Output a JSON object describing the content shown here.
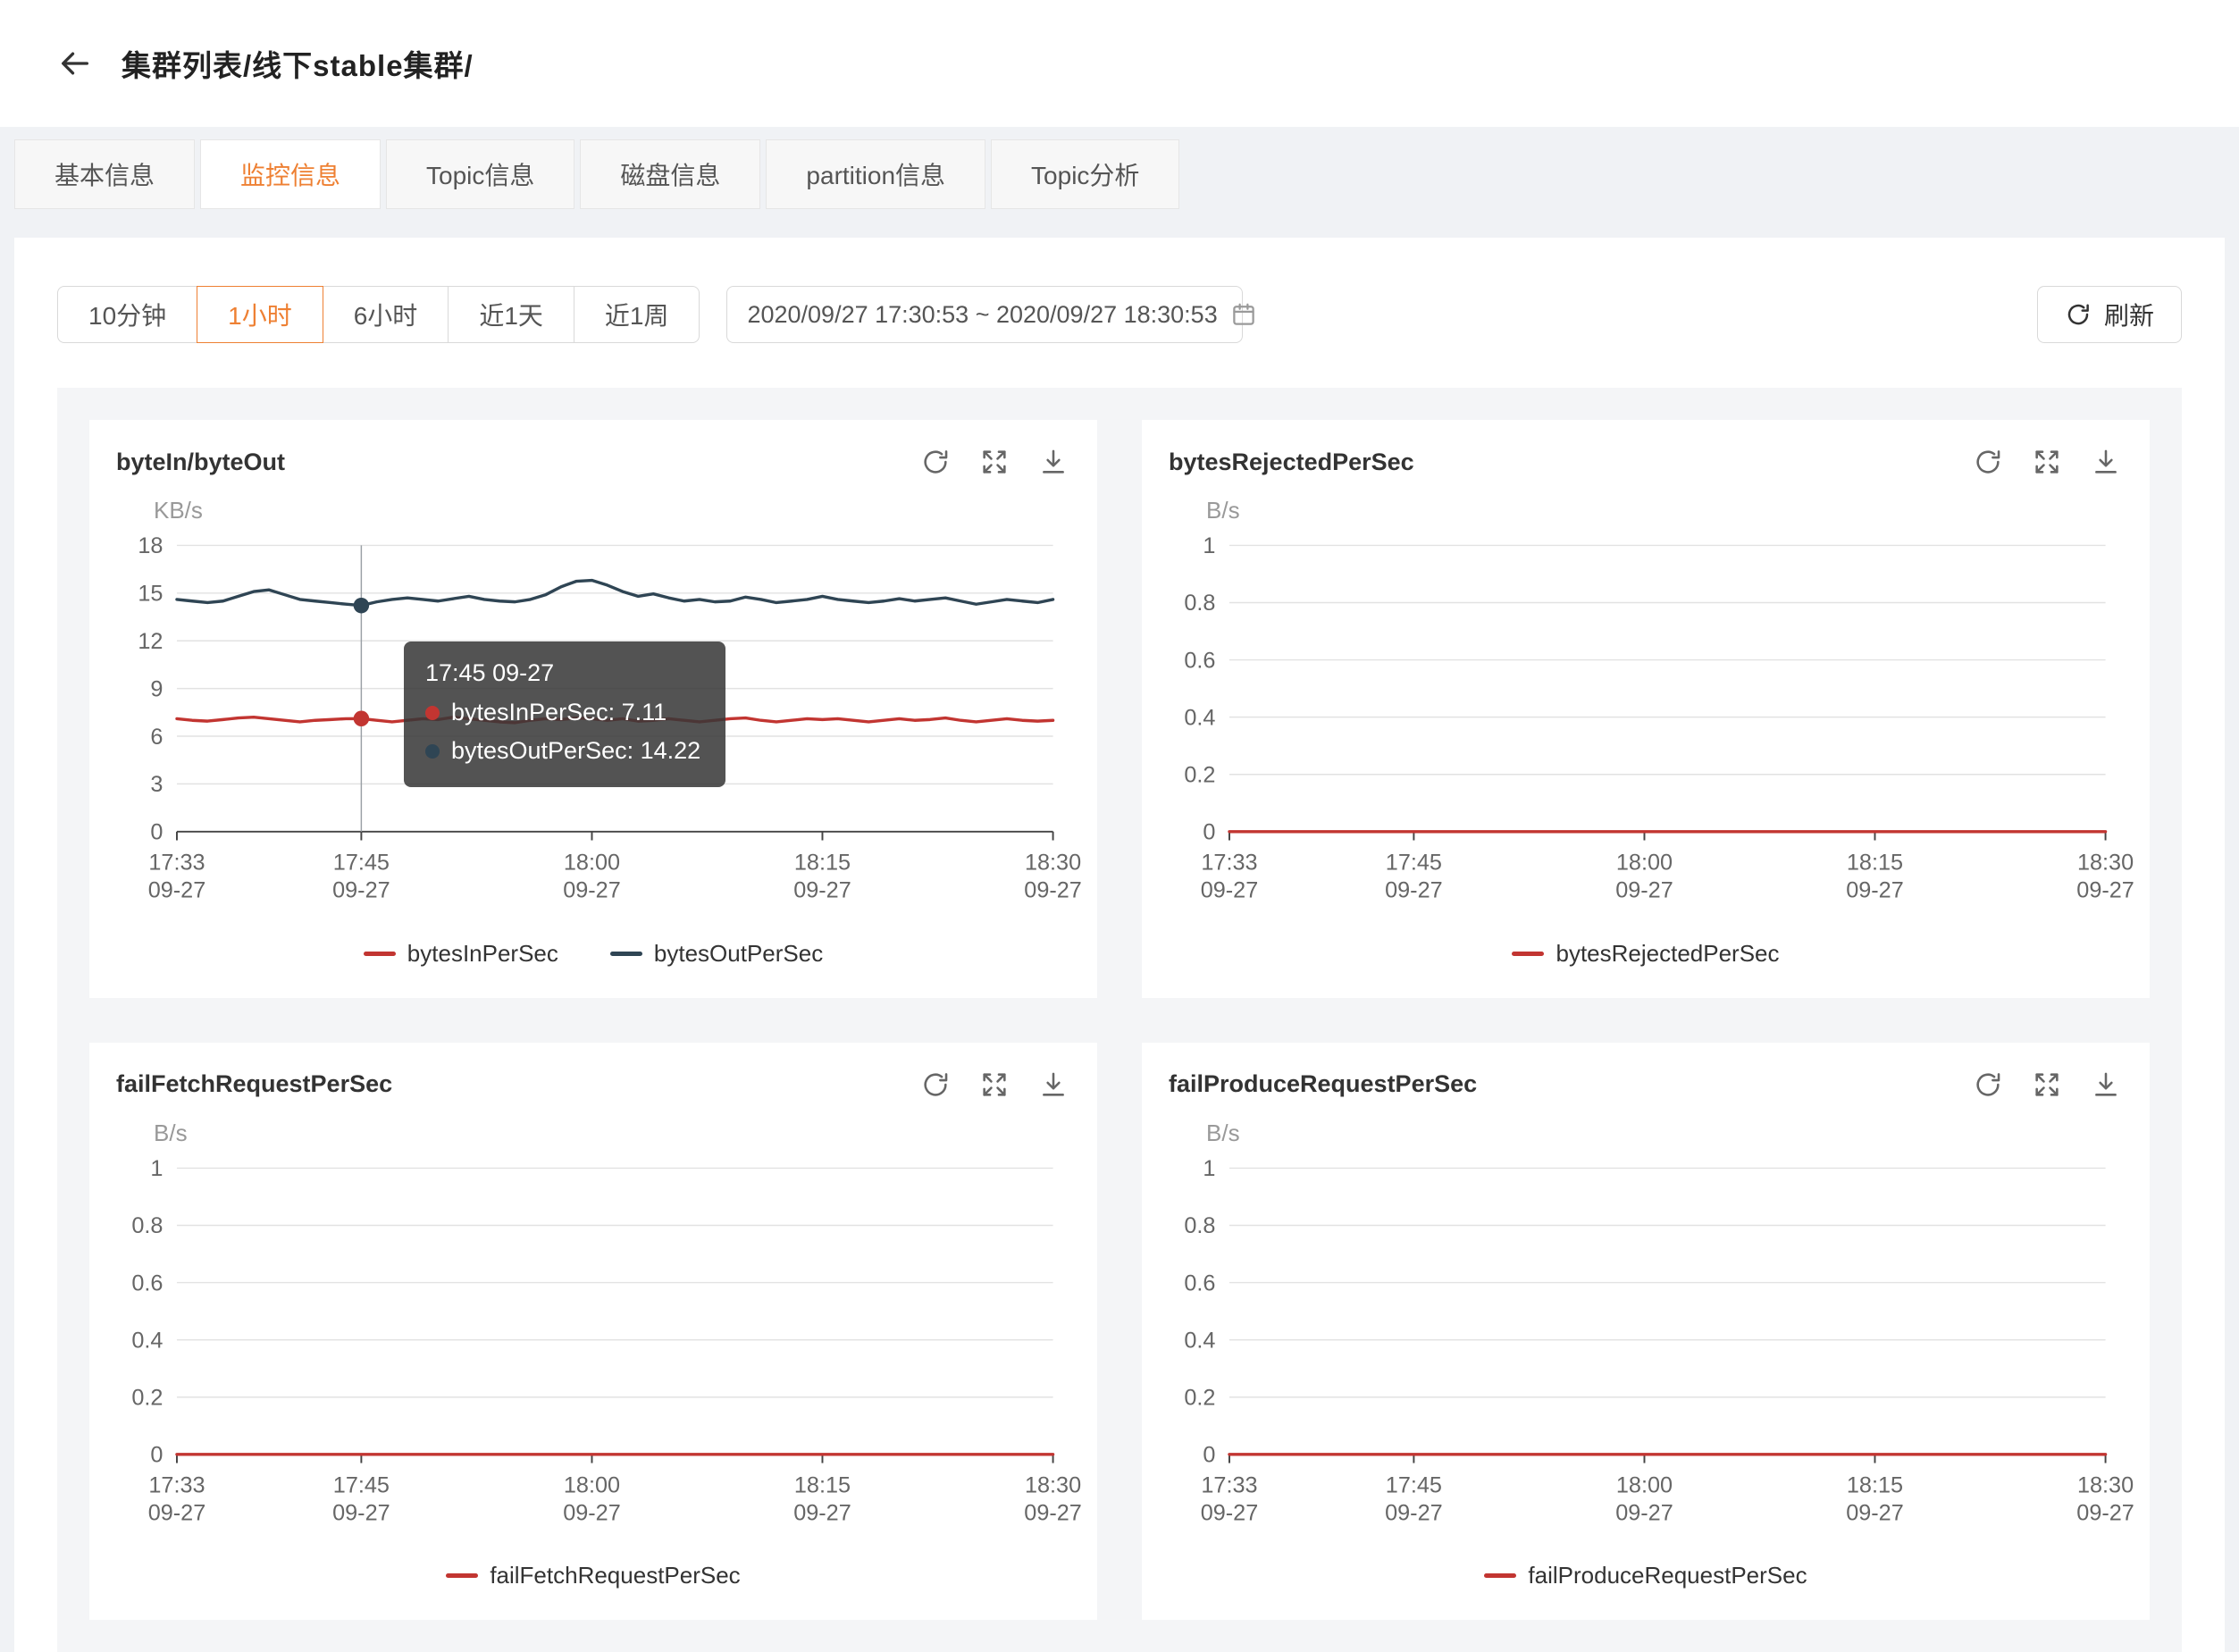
{
  "colors": {
    "accent": "#ee8033",
    "series_red": "#c23531",
    "series_dark": "#2f4554",
    "grid": "#e2e2e2",
    "axis": "#444444"
  },
  "icons": {
    "back": "arrow-left",
    "calendar": "calendar",
    "toolbar_refresh": "circular-arrow",
    "chart_refresh": "circular-arrow",
    "chart_expand": "arrows-out",
    "chart_download": "arrow-down-to-tray"
  },
  "header": {
    "breadcrumb": "集群列表/线下stable集群/"
  },
  "tabs": {
    "active_index": 1,
    "items": [
      {
        "label": "基本信息"
      },
      {
        "label": "监控信息"
      },
      {
        "label": "Topic信息"
      },
      {
        "label": "磁盘信息"
      },
      {
        "label": "partition信息"
      },
      {
        "label": "Topic分析"
      }
    ]
  },
  "toolbar": {
    "active_range_index": 1,
    "time_ranges": [
      {
        "label": "10分钟"
      },
      {
        "label": "1小时"
      },
      {
        "label": "6小时"
      },
      {
        "label": "近1天"
      },
      {
        "label": "近1周"
      }
    ],
    "date_range": "2020/09/27 17:30:53 ~ 2020/09/27 18:30:53",
    "refresh_label": "刷新"
  },
  "chart_data": [
    {
      "type": "line",
      "title": "byteIn/byteOut",
      "unit": "KB/s",
      "ylim": [
        0,
        18
      ],
      "yticks": [
        0,
        3,
        6,
        9,
        12,
        15,
        18
      ],
      "x_tick_pos": [
        0,
        0.2105,
        0.4737,
        0.7368,
        1
      ],
      "x_tick_labels": [
        [
          "17:33",
          "09-27"
        ],
        [
          "17:45",
          "09-27"
        ],
        [
          "18:00",
          "09-27"
        ],
        [
          "18:15",
          "09-27"
        ],
        [
          "18:30",
          "09-27"
        ]
      ],
      "series": [
        {
          "name": "bytesInPerSec",
          "color": "#c23531",
          "values": [
            7.1,
            7.0,
            6.95,
            7.05,
            7.15,
            7.2,
            7.1,
            7.0,
            6.9,
            7.0,
            7.05,
            7.1,
            7.11,
            7.0,
            6.9,
            7.0,
            7.1,
            7.05,
            7.2,
            7.1,
            7.0,
            6.9,
            6.85,
            7.0,
            7.1,
            7.05,
            7.15,
            7.1,
            7.0,
            7.1,
            6.95,
            7.0,
            7.1,
            7.0,
            6.9,
            7.0,
            7.1,
            7.15,
            7.0,
            6.9,
            7.0,
            7.1,
            7.05,
            7.1,
            7.0,
            6.9,
            7.0,
            7.1,
            7.0,
            7.05,
            7.15,
            7.0,
            6.9,
            7.0,
            7.1,
            7.0,
            6.95,
            7.0
          ]
        },
        {
          "name": "bytesOutPerSec",
          "color": "#2f4554",
          "values": [
            14.6,
            14.5,
            14.4,
            14.5,
            14.8,
            15.1,
            15.2,
            14.9,
            14.6,
            14.5,
            14.4,
            14.3,
            14.22,
            14.45,
            14.6,
            14.7,
            14.6,
            14.5,
            14.65,
            14.8,
            14.6,
            14.5,
            14.45,
            14.6,
            14.9,
            15.4,
            15.75,
            15.8,
            15.5,
            15.1,
            14.8,
            14.95,
            14.7,
            14.5,
            14.6,
            14.45,
            14.5,
            14.75,
            14.6,
            14.4,
            14.5,
            14.6,
            14.8,
            14.6,
            14.5,
            14.4,
            14.5,
            14.65,
            14.5,
            14.6,
            14.7,
            14.5,
            14.3,
            14.45,
            14.6,
            14.5,
            14.4,
            14.6
          ]
        }
      ],
      "crosshair": {
        "pos": 0.2105,
        "points": [
          {
            "series": 0,
            "value": 7.11
          },
          {
            "series": 1,
            "value": 14.22
          }
        ]
      },
      "tooltip": {
        "title": "17:45 09-27",
        "rows": [
          {
            "name": "bytesInPerSec",
            "value": "7.11",
            "color": "#c23531"
          },
          {
            "name": "bytesOutPerSec",
            "value": "14.22",
            "color": "#2f4554"
          }
        ]
      }
    },
    {
      "type": "line",
      "title": "bytesRejectedPerSec",
      "unit": "B/s",
      "ylim": [
        0,
        1
      ],
      "yticks": [
        0,
        0.2,
        0.4,
        0.6,
        0.8,
        1
      ],
      "x_tick_pos": [
        0,
        0.2105,
        0.4737,
        0.7368,
        1
      ],
      "x_tick_labels": [
        [
          "17:33",
          "09-27"
        ],
        [
          "17:45",
          "09-27"
        ],
        [
          "18:00",
          "09-27"
        ],
        [
          "18:15",
          "09-27"
        ],
        [
          "18:30",
          "09-27"
        ]
      ],
      "series": [
        {
          "name": "bytesRejectedPerSec",
          "color": "#c23531",
          "values": [
            0,
            0,
            0,
            0,
            0,
            0,
            0,
            0,
            0,
            0
          ]
        }
      ]
    },
    {
      "type": "line",
      "title": "failFetchRequestPerSec",
      "unit": "B/s",
      "ylim": [
        0,
        1
      ],
      "yticks": [
        0,
        0.2,
        0.4,
        0.6,
        0.8,
        1
      ],
      "x_tick_pos": [
        0,
        0.2105,
        0.4737,
        0.7368,
        1
      ],
      "x_tick_labels": [
        [
          "17:33",
          "09-27"
        ],
        [
          "17:45",
          "09-27"
        ],
        [
          "18:00",
          "09-27"
        ],
        [
          "18:15",
          "09-27"
        ],
        [
          "18:30",
          "09-27"
        ]
      ],
      "series": [
        {
          "name": "failFetchRequestPerSec",
          "color": "#c23531",
          "values": [
            0,
            0,
            0,
            0,
            0,
            0,
            0,
            0,
            0,
            0
          ]
        }
      ]
    },
    {
      "type": "line",
      "title": "failProduceRequestPerSec",
      "unit": "B/s",
      "ylim": [
        0,
        1
      ],
      "yticks": [
        0,
        0.2,
        0.4,
        0.6,
        0.8,
        1
      ],
      "x_tick_pos": [
        0,
        0.2105,
        0.4737,
        0.7368,
        1
      ],
      "x_tick_labels": [
        [
          "17:33",
          "09-27"
        ],
        [
          "17:45",
          "09-27"
        ],
        [
          "18:00",
          "09-27"
        ],
        [
          "18:15",
          "09-27"
        ],
        [
          "18:30",
          "09-27"
        ]
      ],
      "series": [
        {
          "name": "failProduceRequestPerSec",
          "color": "#c23531",
          "values": [
            0,
            0,
            0,
            0,
            0,
            0,
            0,
            0,
            0,
            0
          ]
        }
      ]
    }
  ]
}
